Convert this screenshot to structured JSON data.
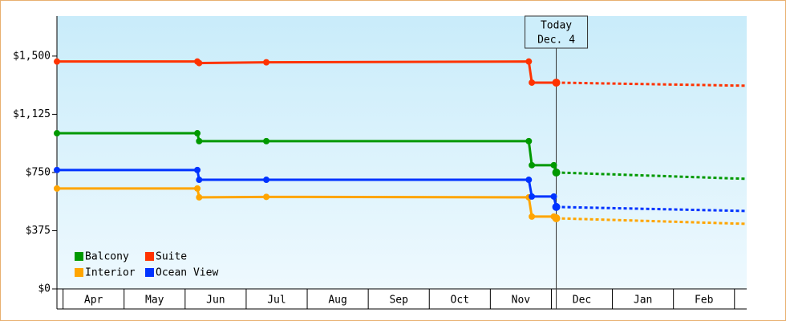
{
  "chart_data": {
    "type": "line",
    "months": [
      "Apr",
      "May",
      "Jun",
      "Jul",
      "Aug",
      "Sep",
      "Oct",
      "Nov",
      "Dec",
      "Jan",
      "Feb"
    ],
    "xlim": [
      -0.1,
      11.2
    ],
    "ylim": [
      0,
      1758
    ],
    "yticks": [
      {
        "value": 0,
        "label": "$0"
      },
      {
        "value": 375,
        "label": "$375"
      },
      {
        "value": 750,
        "label": "$750"
      },
      {
        "value": 1125,
        "label": "$1,125"
      },
      {
        "value": 1500,
        "label": "$1,500"
      }
    ],
    "annotation": {
      "text": [
        "Today",
        "Dec. 4"
      ],
      "x": 8.08
    },
    "series": [
      {
        "name": "Balcony",
        "color": "#009900",
        "x": [
          -0.1,
          2.2,
          2.23,
          3.33,
          7.63,
          7.68,
          8.04,
          8.08
        ],
        "values": [
          1003,
          1003,
          952,
          952,
          952,
          797,
          797,
          750
        ],
        "forecast": {
          "x": [
            8.08,
            11.2
          ],
          "values": [
            750,
            709
          ]
        }
      },
      {
        "name": "Suite",
        "color": "#ff3300",
        "x": [
          -0.1,
          2.2,
          2.23,
          3.33,
          7.63,
          7.68,
          8.08
        ],
        "values": [
          1465,
          1465,
          1455,
          1460,
          1465,
          1329,
          1329
        ],
        "forecast": {
          "x": [
            8.08,
            11.2
          ],
          "values": [
            1329,
            1309
          ]
        }
      },
      {
        "name": "Interior",
        "color": "#ffa500",
        "x": [
          -0.1,
          2.2,
          2.23,
          3.33,
          7.63,
          7.68,
          8.04,
          8.08
        ],
        "values": [
          647,
          647,
          590,
          593,
          590,
          466,
          466,
          455
        ],
        "forecast": {
          "x": [
            8.08,
            11.2
          ],
          "values": [
            455,
            419
          ]
        }
      },
      {
        "name": "Ocean View",
        "color": "#0033ff",
        "x": [
          -0.1,
          2.2,
          2.23,
          3.33,
          7.63,
          7.68,
          8.04,
          8.08
        ],
        "values": [
          766,
          766,
          703,
          703,
          703,
          595,
          595,
          528
        ],
        "forecast": {
          "x": [
            8.08,
            11.2
          ],
          "values": [
            528,
            502
          ]
        }
      }
    ]
  }
}
